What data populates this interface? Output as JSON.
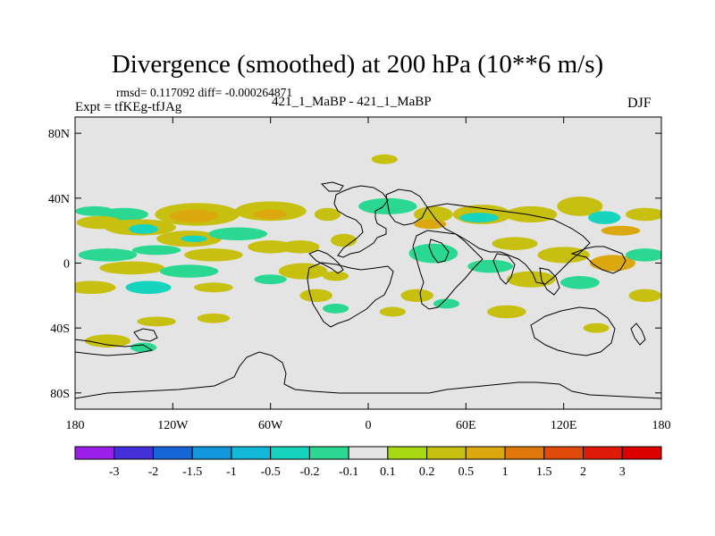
{
  "title": "Divergence (smoothed) at 200 hPa (10**6 m/s)",
  "stats": "rmsd= 0.117092 diff= -0.000264871",
  "experiment": "Expt = tfKEg-tfJAg",
  "comparison": "421_1_MaBP - 421_1_MaBP",
  "season": "DJF",
  "chart_data": {
    "type": "heatmap",
    "title": "Divergence (smoothed) at 200 hPa (10**6 m/s)",
    "projection": "cylindrical-equidistant",
    "xlim": [
      -180,
      180
    ],
    "ylim": [
      -90,
      90
    ],
    "x_ticks": [
      {
        "value": -180,
        "label": "180"
      },
      {
        "value": -120,
        "label": "120W"
      },
      {
        "value": -60,
        "label": "60W"
      },
      {
        "value": 0,
        "label": "0"
      },
      {
        "value": 60,
        "label": "60E"
      },
      {
        "value": 120,
        "label": "120E"
      },
      {
        "value": 180,
        "label": "180"
      }
    ],
    "y_ticks": [
      {
        "value": 80,
        "label": "80N"
      },
      {
        "value": 40,
        "label": "40N"
      },
      {
        "value": 0,
        "label": "0"
      },
      {
        "value": -40,
        "label": "40S"
      },
      {
        "value": -80,
        "label": "80S"
      }
    ],
    "colorbar": {
      "labels": [
        "-3",
        "-2",
        "-1.5",
        "-1",
        "-0.5",
        "-0.2",
        "-0.1",
        "0.1",
        "0.2",
        "0.5",
        "1",
        "1.5",
        "2",
        "3"
      ],
      "colors": [
        "#9b1fe8",
        "#4430d8",
        "#1666d8",
        "#1497dc",
        "#12b9d8",
        "#16d4bd",
        "#2ad891",
        "#e4e4e4",
        "#a8da14",
        "#c8c010",
        "#dca810",
        "#e0780c",
        "#e04a0a",
        "#e01a08",
        "#dd0000"
      ]
    },
    "regions": [
      {
        "lon": -105,
        "lat": 30,
        "rx": 26,
        "ry": 7,
        "value": 0.2
      },
      {
        "lon": -107,
        "lat": 29,
        "rx": 15,
        "ry": 4,
        "value": 0.5
      },
      {
        "lon": -150,
        "lat": 30,
        "rx": 15,
        "ry": 4,
        "value": -0.2
      },
      {
        "lon": -168,
        "lat": 32,
        "rx": 12,
        "ry": 3,
        "value": -0.2
      },
      {
        "lon": -165,
        "lat": 25,
        "rx": 14,
        "ry": 4,
        "value": 0.2
      },
      {
        "lon": -140,
        "lat": 22,
        "rx": 22,
        "ry": 5,
        "value": 0.2
      },
      {
        "lon": -138,
        "lat": 21,
        "rx": 9,
        "ry": 3,
        "value": -0.5
      },
      {
        "lon": -110,
        "lat": 15,
        "rx": 20,
        "ry": 5,
        "value": 0.2
      },
      {
        "lon": -107,
        "lat": 15,
        "rx": 8,
        "ry": 2,
        "value": -0.5
      },
      {
        "lon": -80,
        "lat": 18,
        "rx": 18,
        "ry": 4,
        "value": -0.2
      },
      {
        "lon": -60,
        "lat": 10,
        "rx": 14,
        "ry": 4,
        "value": 0.2
      },
      {
        "lon": -95,
        "lat": 5,
        "rx": 18,
        "ry": 4,
        "value": 0.2
      },
      {
        "lon": -130,
        "lat": 8,
        "rx": 15,
        "ry": 3,
        "value": -0.2
      },
      {
        "lon": -160,
        "lat": 5,
        "rx": 18,
        "ry": 4,
        "value": -0.2
      },
      {
        "lon": -145,
        "lat": -3,
        "rx": 20,
        "ry": 4,
        "value": 0.2
      },
      {
        "lon": -110,
        "lat": -5,
        "rx": 18,
        "ry": 4,
        "value": -0.2
      },
      {
        "lon": -170,
        "lat": -15,
        "rx": 15,
        "ry": 4,
        "value": 0.2
      },
      {
        "lon": -135,
        "lat": -15,
        "rx": 14,
        "ry": 4,
        "value": -0.5
      },
      {
        "lon": -95,
        "lat": -15,
        "rx": 12,
        "ry": 3,
        "value": 0.2
      },
      {
        "lon": -60,
        "lat": -10,
        "rx": 10,
        "ry": 3,
        "value": -0.2
      },
      {
        "lon": -42,
        "lat": 10,
        "rx": 12,
        "ry": 4,
        "value": 0.2
      },
      {
        "lon": -25,
        "lat": 30,
        "rx": 8,
        "ry": 4,
        "value": 0.2
      },
      {
        "lon": -130,
        "lat": -36,
        "rx": 12,
        "ry": 3,
        "value": 0.2
      },
      {
        "lon": -160,
        "lat": -48,
        "rx": 14,
        "ry": 4,
        "value": 0.2
      },
      {
        "lon": -138,
        "lat": -52,
        "rx": 8,
        "ry": 3,
        "value": -0.2
      },
      {
        "lon": -95,
        "lat": -34,
        "rx": 10,
        "ry": 3,
        "value": 0.2
      },
      {
        "lon": -40,
        "lat": -5,
        "rx": 15,
        "ry": 5,
        "value": 0.2
      },
      {
        "lon": -32,
        "lat": -20,
        "rx": 10,
        "ry": 4,
        "value": 0.2
      },
      {
        "lon": -20,
        "lat": -28,
        "rx": 8,
        "ry": 3,
        "value": -0.2
      },
      {
        "lon": -15,
        "lat": 14,
        "rx": 8,
        "ry": 4,
        "value": 0.2
      },
      {
        "lon": -20,
        "lat": -8,
        "rx": 8,
        "ry": 3,
        "value": 0.2
      },
      {
        "lon": 40,
        "lat": 6,
        "rx": 15,
        "ry": 6,
        "value": -0.2
      },
      {
        "lon": 30,
        "lat": -20,
        "rx": 10,
        "ry": 4,
        "value": 0.2
      },
      {
        "lon": 15,
        "lat": -30,
        "rx": 8,
        "ry": 3,
        "value": 0.2
      },
      {
        "lon": 48,
        "lat": -25,
        "rx": 8,
        "ry": 3,
        "value": -0.2
      },
      {
        "lon": 12,
        "lat": 35,
        "rx": 18,
        "ry": 5,
        "value": -0.2
      },
      {
        "lon": 40,
        "lat": 30,
        "rx": 12,
        "ry": 5,
        "value": 0.2
      },
      {
        "lon": 38,
        "lat": 24,
        "rx": 10,
        "ry": 3,
        "value": 0.5
      },
      {
        "lon": 70,
        "lat": 30,
        "rx": 18,
        "ry": 6,
        "value": 0.2
      },
      {
        "lon": 68,
        "lat": 28,
        "rx": 12,
        "ry": 3,
        "value": -0.5
      },
      {
        "lon": 100,
        "lat": 30,
        "rx": 16,
        "ry": 5,
        "value": 0.2
      },
      {
        "lon": 130,
        "lat": 35,
        "rx": 14,
        "ry": 6,
        "value": 0.2
      },
      {
        "lon": 145,
        "lat": 28,
        "rx": 10,
        "ry": 4,
        "value": -0.5
      },
      {
        "lon": 170,
        "lat": 30,
        "rx": 12,
        "ry": 4,
        "value": 0.2
      },
      {
        "lon": 155,
        "lat": 20,
        "rx": 12,
        "ry": 3,
        "value": 0.5
      },
      {
        "lon": 90,
        "lat": 12,
        "rx": 14,
        "ry": 4,
        "value": 0.2
      },
      {
        "lon": 120,
        "lat": 5,
        "rx": 16,
        "ry": 5,
        "value": 0.2
      },
      {
        "lon": 150,
        "lat": 0,
        "rx": 14,
        "ry": 5,
        "value": 0.5
      },
      {
        "lon": 170,
        "lat": 5,
        "rx": 12,
        "ry": 4,
        "value": -0.2
      },
      {
        "lon": 100,
        "lat": -10,
        "rx": 15,
        "ry": 5,
        "value": 0.2
      },
      {
        "lon": 130,
        "lat": -12,
        "rx": 12,
        "ry": 4,
        "value": -0.2
      },
      {
        "lon": 170,
        "lat": -20,
        "rx": 10,
        "ry": 4,
        "value": 0.2
      },
      {
        "lon": 75,
        "lat": -2,
        "rx": 14,
        "ry": 4,
        "value": -0.2
      },
      {
        "lon": 85,
        "lat": -30,
        "rx": 12,
        "ry": 4,
        "value": 0.2
      },
      {
        "lon": 140,
        "lat": -40,
        "rx": 8,
        "ry": 3,
        "value": 0.2
      },
      {
        "lon": 45,
        "lat": 60,
        "rx": 10,
        "ry": 3,
        "value": -0.1
      },
      {
        "lon": 10,
        "lat": 64,
        "rx": 8,
        "ry": 3,
        "value": 0.2
      },
      {
        "lon": 148,
        "lat": -78,
        "rx": 30,
        "ry": 3,
        "value": -0.1
      },
      {
        "lon": 165,
        "lat": -60,
        "rx": 8,
        "ry": 3,
        "value": -0.1
      },
      {
        "lon": -60,
        "lat": 32,
        "rx": 22,
        "ry": 6,
        "value": 0.2
      },
      {
        "lon": -60,
        "lat": 30,
        "rx": 10,
        "ry": 3,
        "value": 0.5
      }
    ]
  }
}
